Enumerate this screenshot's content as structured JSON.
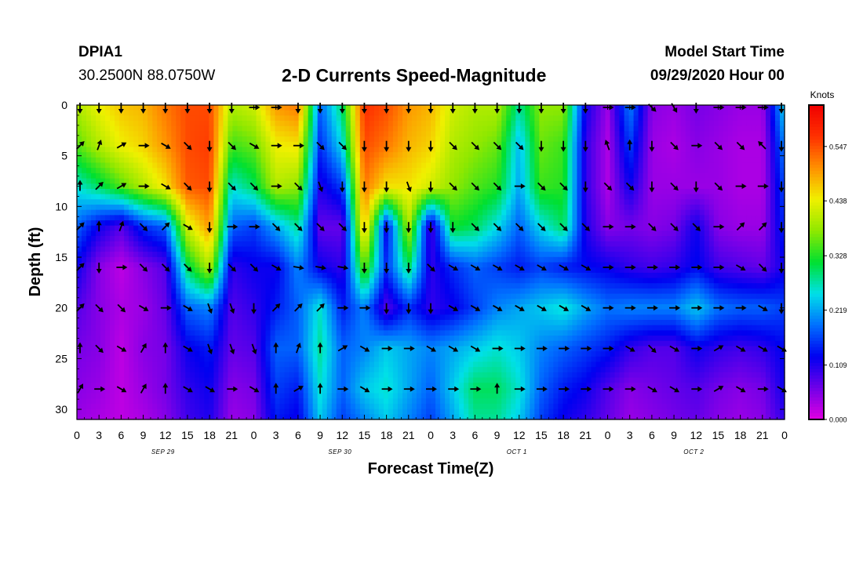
{
  "header": {
    "station": "DPIA1",
    "coords": "30.2500N 88.0750W",
    "title": "2-D Currents Speed-Magnitude",
    "start_label": "Model Start Time",
    "start_value": "09/29/2020 Hour 00"
  },
  "chart_data": {
    "type": "heatmap",
    "title": "2-D Currents Speed-Magnitude",
    "xlabel": "Forecast Time(Z)",
    "ylabel": "Depth (ft)",
    "x_ticks": [
      "0",
      "3",
      "6",
      "9",
      "12",
      "15",
      "18",
      "21",
      "0",
      "3",
      "6",
      "9",
      "12",
      "15",
      "18",
      "21",
      "0",
      "3",
      "6",
      "9",
      "12",
      "15",
      "18",
      "21",
      "0",
      "3",
      "6",
      "9",
      "12",
      "15",
      "18",
      "21",
      "0"
    ],
    "date_labels": [
      "SEP 29",
      "SEP 30",
      "OCT 1",
      "OCT 2"
    ],
    "y_ticks": [
      0,
      5,
      10,
      15,
      20,
      25,
      30
    ],
    "ylim": [
      0,
      31
    ],
    "xlim_hours": [
      0,
      96
    ],
    "colorbar": {
      "label": "Knots",
      "ticks": [
        "0.547",
        "0.438",
        "0.328",
        "0.219",
        "0.109",
        "0.000"
      ],
      "range": [
        0,
        0.63
      ],
      "colors": [
        "#e000e0",
        "#7000e8",
        "#0000f0",
        "#0070ff",
        "#00e0e8",
        "#00e030",
        "#90e800",
        "#f0f000",
        "#ff9000",
        "#ff3000",
        "#f00000"
      ]
    },
    "depths_ft": [
      0,
      4,
      8,
      12,
      16,
      20,
      24,
      28,
      31
    ],
    "times_h": [
      0,
      3,
      6,
      9,
      12,
      15,
      18,
      21,
      24,
      27,
      30,
      33,
      36,
      39,
      42,
      45,
      48,
      51,
      54,
      57,
      60,
      63,
      66,
      69,
      72,
      75,
      78,
      81,
      84,
      87,
      90,
      93,
      96
    ],
    "speed": [
      [
        0.4,
        0.44,
        0.47,
        0.48,
        0.52,
        0.55,
        0.55,
        0.4,
        0.42,
        0.5,
        0.52,
        0.18,
        0.3,
        0.57,
        0.55,
        0.5,
        0.48,
        0.42,
        0.4,
        0.4,
        0.28,
        0.38,
        0.38,
        0.12,
        0.04,
        0.2,
        0.05,
        0.04,
        0.06,
        0.05,
        0.04,
        0.04,
        0.25
      ],
      [
        0.35,
        0.4,
        0.44,
        0.46,
        0.5,
        0.55,
        0.56,
        0.34,
        0.36,
        0.44,
        0.45,
        0.15,
        0.25,
        0.55,
        0.52,
        0.48,
        0.46,
        0.4,
        0.38,
        0.36,
        0.23,
        0.36,
        0.34,
        0.1,
        0.03,
        0.16,
        0.04,
        0.03,
        0.05,
        0.04,
        0.03,
        0.03,
        0.2
      ],
      [
        0.26,
        0.3,
        0.35,
        0.4,
        0.45,
        0.54,
        0.55,
        0.26,
        0.3,
        0.4,
        0.38,
        0.11,
        0.16,
        0.52,
        0.45,
        0.45,
        0.42,
        0.38,
        0.35,
        0.33,
        0.22,
        0.34,
        0.33,
        0.1,
        0.03,
        0.12,
        0.04,
        0.04,
        0.04,
        0.04,
        0.03,
        0.03,
        0.17
      ],
      [
        0.18,
        0.12,
        0.08,
        0.15,
        0.18,
        0.42,
        0.5,
        0.18,
        0.16,
        0.22,
        0.28,
        0.07,
        0.07,
        0.48,
        0.12,
        0.4,
        0.08,
        0.32,
        0.3,
        0.25,
        0.18,
        0.25,
        0.3,
        0.11,
        0.05,
        0.06,
        0.05,
        0.06,
        0.12,
        0.05,
        0.04,
        0.04,
        0.15
      ],
      [
        0.12,
        0.05,
        0.02,
        0.05,
        0.08,
        0.3,
        0.4,
        0.1,
        0.12,
        0.12,
        0.2,
        0.12,
        0.1,
        0.36,
        0.15,
        0.3,
        0.1,
        0.15,
        0.18,
        0.16,
        0.14,
        0.16,
        0.14,
        0.13,
        0.12,
        0.1,
        0.09,
        0.1,
        0.13,
        0.09,
        0.08,
        0.07,
        0.12
      ],
      [
        0.08,
        0.05,
        0.03,
        0.04,
        0.07,
        0.18,
        0.2,
        0.08,
        0.1,
        0.14,
        0.18,
        0.26,
        0.14,
        0.2,
        0.08,
        0.15,
        0.1,
        0.12,
        0.16,
        0.2,
        0.22,
        0.24,
        0.26,
        0.22,
        0.19,
        0.2,
        0.2,
        0.2,
        0.24,
        0.19,
        0.18,
        0.18,
        0.16
      ],
      [
        0.06,
        0.05,
        0.02,
        0.05,
        0.06,
        0.12,
        0.14,
        0.07,
        0.08,
        0.18,
        0.18,
        0.28,
        0.18,
        0.2,
        0.24,
        0.22,
        0.2,
        0.22,
        0.24,
        0.26,
        0.24,
        0.2,
        0.18,
        0.16,
        0.14,
        0.1,
        0.08,
        0.08,
        0.12,
        0.1,
        0.09,
        0.1,
        0.13
      ],
      [
        0.05,
        0.04,
        0.02,
        0.04,
        0.06,
        0.1,
        0.12,
        0.05,
        0.06,
        0.16,
        0.14,
        0.26,
        0.18,
        0.24,
        0.26,
        0.22,
        0.18,
        0.24,
        0.3,
        0.3,
        0.26,
        0.18,
        0.14,
        0.12,
        0.08,
        0.05,
        0.06,
        0.07,
        0.08,
        0.06,
        0.05,
        0.06,
        0.12
      ],
      [
        0.04,
        0.03,
        0.02,
        0.03,
        0.05,
        0.09,
        0.11,
        0.04,
        0.05,
        0.14,
        0.12,
        0.24,
        0.16,
        0.2,
        0.24,
        0.2,
        0.16,
        0.22,
        0.28,
        0.28,
        0.24,
        0.16,
        0.12,
        0.1,
        0.07,
        0.04,
        0.05,
        0.06,
        0.07,
        0.05,
        0.04,
        0.05,
        0.1
      ]
    ],
    "arrow_depths_ft": [
      0,
      4,
      8,
      12,
      16,
      20,
      24,
      28
    ],
    "arrow_times_h": [
      0,
      3,
      6,
      9,
      12,
      15,
      18,
      21,
      24,
      27,
      30,
      33,
      36,
      39,
      42,
      45,
      48,
      51,
      54,
      57,
      60,
      63,
      66,
      69,
      72,
      75,
      78,
      81,
      84,
      87,
      90,
      93,
      96
    ],
    "arrow_dir_deg": [
      [
        180,
        180,
        180,
        180,
        180,
        180,
        180,
        180,
        90,
        90,
        180,
        180,
        180,
        180,
        180,
        180,
        180,
        180,
        180,
        180,
        180,
        180,
        180,
        180,
        90,
        90,
        135,
        150,
        180,
        90,
        90,
        90,
        180
      ],
      [
        45,
        20,
        60,
        90,
        120,
        135,
        180,
        135,
        120,
        90,
        90,
        135,
        135,
        180,
        180,
        180,
        180,
        135,
        135,
        135,
        135,
        180,
        180,
        180,
        -20,
        0,
        180,
        135,
        90,
        135,
        135,
        -45,
        180
      ],
      [
        0,
        45,
        60,
        90,
        120,
        135,
        180,
        135,
        135,
        90,
        135,
        160,
        180,
        180,
        180,
        160,
        180,
        135,
        135,
        135,
        90,
        135,
        135,
        180,
        135,
        135,
        180,
        135,
        180,
        135,
        90,
        90,
        180
      ],
      [
        45,
        0,
        20,
        135,
        45,
        120,
        180,
        90,
        90,
        135,
        135,
        135,
        135,
        180,
        180,
        180,
        180,
        180,
        135,
        135,
        135,
        135,
        135,
        135,
        90,
        90,
        135,
        135,
        135,
        90,
        45,
        45,
        180
      ],
      [
        45,
        180,
        90,
        135,
        135,
        135,
        180,
        135,
        135,
        120,
        100,
        100,
        100,
        180,
        180,
        180,
        135,
        120,
        120,
        120,
        120,
        120,
        120,
        120,
        90,
        90,
        90,
        90,
        90,
        90,
        120,
        135,
        180
      ],
      [
        45,
        135,
        135,
        120,
        90,
        120,
        160,
        160,
        180,
        45,
        45,
        45,
        90,
        90,
        180,
        180,
        180,
        120,
        120,
        120,
        120,
        120,
        120,
        120,
        90,
        90,
        90,
        90,
        90,
        90,
        90,
        120,
        180
      ],
      [
        0,
        135,
        120,
        30,
        0,
        120,
        160,
        160,
        160,
        0,
        20,
        0,
        60,
        120,
        90,
        90,
        120,
        120,
        120,
        90,
        90,
        90,
        90,
        90,
        90,
        120,
        135,
        120,
        90,
        60,
        120,
        120,
        120
      ],
      [
        30,
        90,
        120,
        30,
        0,
        120,
        120,
        90,
        120,
        0,
        60,
        0,
        90,
        120,
        90,
        90,
        90,
        90,
        90,
        0,
        90,
        90,
        90,
        90,
        90,
        90,
        120,
        120,
        90,
        60,
        120,
        90,
        120
      ]
    ]
  }
}
